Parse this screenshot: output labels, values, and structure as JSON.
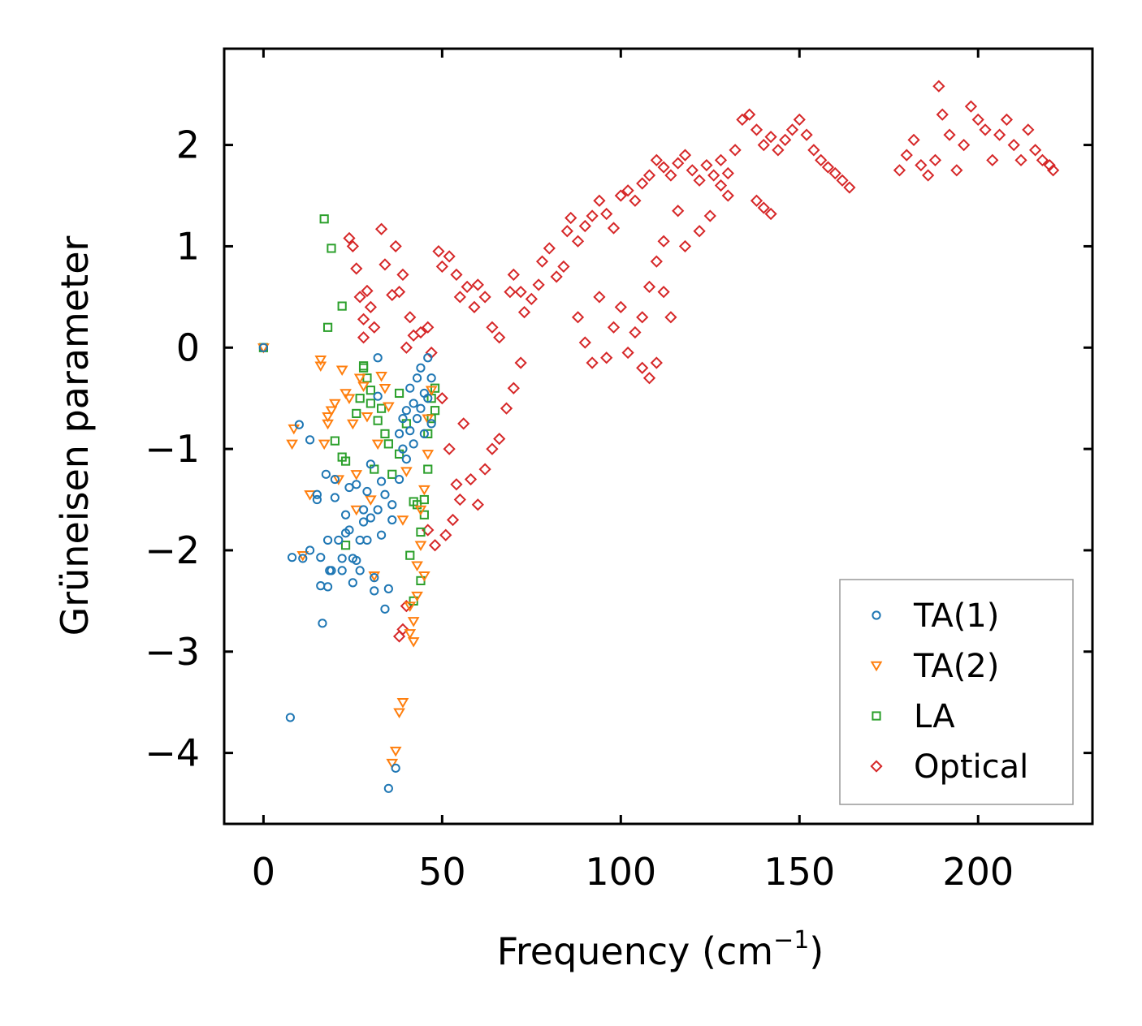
{
  "chart_data": {
    "type": "scatter",
    "title": "",
    "xlabel": "Frequency (cm",
    "xlabel_sup": "−1",
    "xlabel_close": ")",
    "ylabel": "Grüneisen parameter",
    "xlim": [
      -11,
      232
    ],
    "ylim": [
      -4.7,
      2.95
    ],
    "xticks": [
      0,
      50,
      100,
      150,
      200
    ],
    "xtick_labels": [
      "0",
      "50",
      "100",
      "150",
      "200"
    ],
    "yticks": [
      2,
      1,
      0,
      -1,
      -2,
      -3,
      -4
    ],
    "ytick_labels": [
      "2",
      "1",
      "0",
      "−1",
      "−2",
      "−3",
      "−4"
    ],
    "grid": false,
    "legend_position": "lower-right",
    "series": [
      {
        "name": "TA(1)",
        "marker": "circle",
        "color": "#1f77b4",
        "points": [
          [
            0,
            0
          ],
          [
            7.5,
            -3.65
          ],
          [
            8,
            -2.07
          ],
          [
            10,
            -0.76
          ],
          [
            11,
            -2.08
          ],
          [
            13,
            -2.0
          ],
          [
            13,
            -0.91
          ],
          [
            15,
            -1.45
          ],
          [
            15,
            -1.5
          ],
          [
            16,
            -2.07
          ],
          [
            16,
            -2.35
          ],
          [
            16.5,
            -2.72
          ],
          [
            17.5,
            -1.25
          ],
          [
            18,
            -1.9
          ],
          [
            18,
            -2.36
          ],
          [
            18.5,
            -2.2
          ],
          [
            19,
            -2.2
          ],
          [
            20,
            -1.3
          ],
          [
            20,
            -1.48
          ],
          [
            21,
            -1.9
          ],
          [
            22,
            -2.08
          ],
          [
            22,
            -2.2
          ],
          [
            23,
            -1.65
          ],
          [
            23,
            -1.83
          ],
          [
            24,
            -1.38
          ],
          [
            24,
            -1.8
          ],
          [
            25,
            -2.32
          ],
          [
            25,
            -2.08
          ],
          [
            26,
            -1.35
          ],
          [
            26,
            -2.1
          ],
          [
            27,
            -2.2
          ],
          [
            27,
            -1.9
          ],
          [
            28,
            -1.6
          ],
          [
            28,
            -1.72
          ],
          [
            29,
            -1.42
          ],
          [
            29,
            -1.9
          ],
          [
            30,
            -1.15
          ],
          [
            30,
            -1.68
          ],
          [
            31,
            -2.4
          ],
          [
            31,
            -2.27
          ],
          [
            32,
            -0.1
          ],
          [
            32,
            -0.48
          ],
          [
            32,
            -1.6
          ],
          [
            33,
            -1.32
          ],
          [
            33,
            -1.85
          ],
          [
            34,
            -2.58
          ],
          [
            34,
            -1.45
          ],
          [
            35,
            -2.38
          ],
          [
            35,
            -4.35
          ],
          [
            36,
            -1.7
          ],
          [
            36,
            -1.55
          ],
          [
            37,
            -4.15
          ],
          [
            38,
            -0.85
          ],
          [
            38,
            -1.3
          ],
          [
            39,
            -1.0
          ],
          [
            39,
            -0.7
          ],
          [
            40,
            -0.62
          ],
          [
            40,
            -1.1
          ],
          [
            41,
            -0.4
          ],
          [
            41,
            -0.82
          ],
          [
            42,
            -0.55
          ],
          [
            42,
            -0.95
          ],
          [
            43,
            -0.3
          ],
          [
            43,
            -0.7
          ],
          [
            44,
            -0.2
          ],
          [
            44,
            -0.6
          ],
          [
            45,
            -0.45
          ],
          [
            45,
            -0.85
          ],
          [
            46,
            -0.1
          ],
          [
            46,
            -0.5
          ],
          [
            47,
            -0.3
          ],
          [
            47,
            -0.75
          ]
        ]
      },
      {
        "name": "TA(2)",
        "marker": "triangle-down",
        "color": "#ff7f0e",
        "points": [
          [
            0,
            0
          ],
          [
            8,
            -0.95
          ],
          [
            8.5,
            -0.8
          ],
          [
            11,
            -2.05
          ],
          [
            13,
            -1.45
          ],
          [
            16,
            -0.12
          ],
          [
            16,
            -0.18
          ],
          [
            17,
            -0.95
          ],
          [
            18,
            -0.68
          ],
          [
            18,
            -0.75
          ],
          [
            19,
            -0.62
          ],
          [
            20,
            -0.55
          ],
          [
            21,
            -1.3
          ],
          [
            22,
            -0.22
          ],
          [
            23,
            -0.45
          ],
          [
            24,
            -0.5
          ],
          [
            25,
            -0.75
          ],
          [
            26,
            -1.25
          ],
          [
            26,
            -1.6
          ],
          [
            27,
            -0.3
          ],
          [
            28,
            -0.38
          ],
          [
            29,
            -0.68
          ],
          [
            30,
            -1.5
          ],
          [
            31,
            -2.25
          ],
          [
            32,
            -0.95
          ],
          [
            33,
            -0.28
          ],
          [
            34,
            -0.4
          ],
          [
            35,
            -0.58
          ],
          [
            36,
            -4.1
          ],
          [
            37,
            -3.98
          ],
          [
            38,
            -3.6
          ],
          [
            39,
            -3.5
          ],
          [
            39,
            -1.7
          ],
          [
            40,
            -1.22
          ],
          [
            41,
            -2.55
          ],
          [
            41,
            -2.82
          ],
          [
            42,
            -2.9
          ],
          [
            42,
            -2.7
          ],
          [
            43,
            -2.45
          ],
          [
            43,
            -2.15
          ],
          [
            44,
            -1.6
          ],
          [
            44,
            -1.95
          ],
          [
            45,
            -2.25
          ],
          [
            45,
            -1.4
          ],
          [
            46,
            -1.05
          ],
          [
            46,
            -0.7
          ],
          [
            47,
            -0.42
          ]
        ]
      },
      {
        "name": "LA",
        "marker": "square",
        "color": "#2ca02c",
        "points": [
          [
            0,
            0
          ],
          [
            17,
            1.27
          ],
          [
            18,
            0.2
          ],
          [
            19,
            0.98
          ],
          [
            20,
            -0.92
          ],
          [
            22,
            0.41
          ],
          [
            22,
            -1.08
          ],
          [
            23,
            -1.12
          ],
          [
            23,
            -1.95
          ],
          [
            26,
            -0.65
          ],
          [
            27,
            -0.5
          ],
          [
            28,
            -0.18
          ],
          [
            28,
            -0.2
          ],
          [
            29,
            -0.3
          ],
          [
            30,
            -0.42
          ],
          [
            30,
            -0.55
          ],
          [
            31,
            -1.2
          ],
          [
            32,
            -0.72
          ],
          [
            33,
            -0.6
          ],
          [
            34,
            -0.85
          ],
          [
            35,
            -0.95
          ],
          [
            36,
            -1.25
          ],
          [
            38,
            -0.45
          ],
          [
            38,
            -1.05
          ],
          [
            40,
            -0.75
          ],
          [
            41,
            -2.05
          ],
          [
            42,
            -1.52
          ],
          [
            42,
            -2.5
          ],
          [
            43,
            -1.55
          ],
          [
            44,
            -1.82
          ],
          [
            44,
            -2.3
          ],
          [
            45,
            -1.5
          ],
          [
            45,
            -1.65
          ],
          [
            46,
            -1.2
          ],
          [
            46,
            -0.85
          ],
          [
            47,
            -0.7
          ],
          [
            47,
            -0.5
          ],
          [
            48,
            -0.4
          ],
          [
            48,
            -0.62
          ]
        ]
      },
      {
        "name": "Optical",
        "marker": "diamond",
        "color": "#d62728",
        "points": [
          [
            24,
            1.08
          ],
          [
            25,
            1.0
          ],
          [
            26,
            0.78
          ],
          [
            27,
            0.5
          ],
          [
            28,
            0.28
          ],
          [
            28,
            0.1
          ],
          [
            29,
            0.56
          ],
          [
            30,
            0.4
          ],
          [
            31,
            0.2
          ],
          [
            33,
            1.17
          ],
          [
            34,
            0.82
          ],
          [
            36,
            0.52
          ],
          [
            37,
            1.0
          ],
          [
            38,
            0.55
          ],
          [
            39,
            0.72
          ],
          [
            40,
            0.0
          ],
          [
            41,
            0.3
          ],
          [
            42,
            0.12
          ],
          [
            38,
            -2.85
          ],
          [
            39,
            -2.78
          ],
          [
            40,
            -2.55
          ],
          [
            44,
            0.15
          ],
          [
            46,
            0.2
          ],
          [
            47,
            -0.05
          ],
          [
            49,
            0.95
          ],
          [
            50,
            0.8
          ],
          [
            52,
            0.9
          ],
          [
            54,
            0.72
          ],
          [
            55,
            0.5
          ],
          [
            57,
            0.6
          ],
          [
            59,
            0.4
          ],
          [
            60,
            0.62
          ],
          [
            62,
            0.5
          ],
          [
            64,
            0.2
          ],
          [
            66,
            0.1
          ],
          [
            69,
            0.55
          ],
          [
            70,
            0.72
          ],
          [
            72,
            0.55
          ],
          [
            73,
            0.35
          ],
          [
            75,
            0.48
          ],
          [
            77,
            0.62
          ],
          [
            78,
            0.85
          ],
          [
            80,
            0.98
          ],
          [
            82,
            0.7
          ],
          [
            84,
            0.8
          ],
          [
            85,
            1.15
          ],
          [
            86,
            1.28
          ],
          [
            88,
            1.05
          ],
          [
            90,
            1.2
          ],
          [
            92,
            1.3
          ],
          [
            94,
            1.45
          ],
          [
            96,
            1.32
          ],
          [
            98,
            1.18
          ],
          [
            100,
            1.5
          ],
          [
            102,
            1.55
          ],
          [
            104,
            1.45
          ],
          [
            106,
            1.62
          ],
          [
            108,
            1.7
          ],
          [
            110,
            1.85
          ],
          [
            112,
            1.78
          ],
          [
            114,
            1.7
          ],
          [
            116,
            1.82
          ],
          [
            118,
            1.9
          ],
          [
            120,
            1.75
          ],
          [
            122,
            1.65
          ],
          [
            124,
            1.8
          ],
          [
            126,
            1.7
          ],
          [
            128,
            1.85
          ],
          [
            130,
            1.72
          ],
          [
            132,
            1.95
          ],
          [
            134,
            2.25
          ],
          [
            136,
            2.3
          ],
          [
            138,
            2.15
          ],
          [
            140,
            2.0
          ],
          [
            142,
            2.08
          ],
          [
            144,
            1.95
          ],
          [
            146,
            2.05
          ],
          [
            148,
            2.15
          ],
          [
            150,
            2.25
          ],
          [
            152,
            2.1
          ],
          [
            154,
            1.95
          ],
          [
            156,
            1.85
          ],
          [
            158,
            1.78
          ],
          [
            160,
            1.72
          ],
          [
            162,
            1.65
          ],
          [
            164,
            1.58
          ],
          [
            138,
            1.45
          ],
          [
            140,
            1.38
          ],
          [
            142,
            1.32
          ],
          [
            130,
            1.5
          ],
          [
            128,
            1.6
          ],
          [
            125,
            1.3
          ],
          [
            122,
            1.15
          ],
          [
            118,
            1.0
          ],
          [
            116,
            1.35
          ],
          [
            112,
            1.05
          ],
          [
            110,
            0.85
          ],
          [
            108,
            0.6
          ],
          [
            106,
            0.3
          ],
          [
            104,
            0.15
          ],
          [
            102,
            -0.05
          ],
          [
            100,
            0.4
          ],
          [
            98,
            0.2
          ],
          [
            96,
            -0.1
          ],
          [
            94,
            0.5
          ],
          [
            92,
            -0.15
          ],
          [
            90,
            0.05
          ],
          [
            88,
            0.3
          ],
          [
            106,
            -0.2
          ],
          [
            108,
            -0.3
          ],
          [
            110,
            -0.15
          ],
          [
            112,
            0.55
          ],
          [
            114,
            0.3
          ],
          [
            178,
            1.75
          ],
          [
            180,
            1.9
          ],
          [
            182,
            2.05
          ],
          [
            184,
            1.8
          ],
          [
            186,
            1.7
          ],
          [
            188,
            1.85
          ],
          [
            189,
            2.58
          ],
          [
            190,
            2.3
          ],
          [
            192,
            2.1
          ],
          [
            194,
            1.75
          ],
          [
            196,
            2.0
          ],
          [
            198,
            2.38
          ],
          [
            200,
            2.25
          ],
          [
            202,
            2.15
          ],
          [
            204,
            1.85
          ],
          [
            206,
            2.1
          ],
          [
            208,
            2.25
          ],
          [
            210,
            2.0
          ],
          [
            212,
            1.85
          ],
          [
            214,
            2.15
          ],
          [
            216,
            1.95
          ],
          [
            218,
            1.85
          ],
          [
            220,
            1.8
          ],
          [
            221,
            1.75
          ],
          [
            50,
            -0.5
          ],
          [
            52,
            -1.0
          ],
          [
            54,
            -1.35
          ],
          [
            56,
            -0.75
          ],
          [
            58,
            -1.3
          ],
          [
            60,
            -1.55
          ],
          [
            62,
            -1.2
          ],
          [
            64,
            -1.0
          ],
          [
            66,
            -0.9
          ],
          [
            68,
            -0.6
          ],
          [
            70,
            -0.4
          ],
          [
            72,
            -0.15
          ],
          [
            51,
            -1.85
          ],
          [
            53,
            -1.7
          ],
          [
            55,
            -1.5
          ],
          [
            48,
            -1.95
          ],
          [
            46,
            -1.8
          ]
        ]
      }
    ]
  },
  "legend": {
    "items": [
      {
        "label": "TA(1)",
        "marker": "circle",
        "color": "#1f77b4"
      },
      {
        "label": "TA(2)",
        "marker": "triangle-down",
        "color": "#ff7f0e"
      },
      {
        "label": "LA",
        "marker": "square",
        "color": "#2ca02c"
      },
      {
        "label": "Optical",
        "marker": "diamond",
        "color": "#d62728"
      }
    ]
  }
}
